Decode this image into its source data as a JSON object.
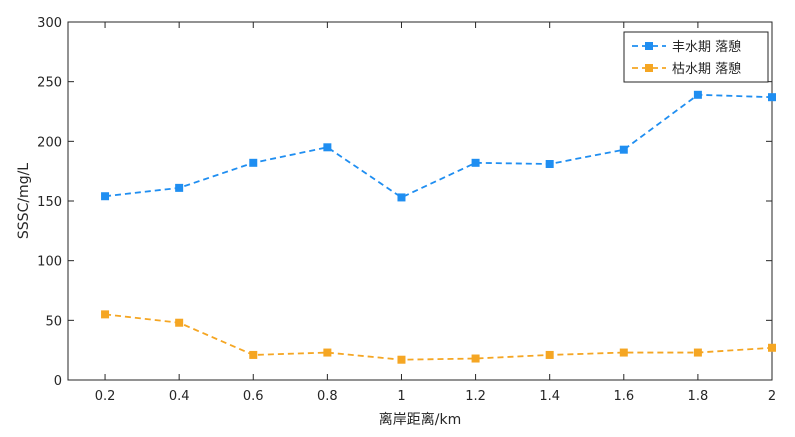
{
  "chart_data": {
    "type": "line",
    "xlabel": "离岸距离/km",
    "ylabel": "SSSC/mg/L",
    "x": [
      0.2,
      0.4,
      0.6,
      0.8,
      1,
      1.2,
      1.4,
      1.6,
      1.8,
      2
    ],
    "xticks": [
      "0.2",
      "0.4",
      "0.6",
      "0.8",
      "1",
      "1.2",
      "1.4",
      "1.6",
      "1.8",
      "2"
    ],
    "yticks": [
      "0",
      "50",
      "100",
      "150",
      "200",
      "250",
      "300"
    ],
    "xlim": [
      0.1,
      2
    ],
    "ylim": [
      0,
      300
    ],
    "grid": false,
    "legend_position": "top-right",
    "series": [
      {
        "name": "丰水期 落憩",
        "color": "#1f8ef1",
        "line_style": "dashed",
        "marker": "square",
        "values": [
          154,
          161,
          182,
          195,
          153,
          182,
          181,
          193,
          239,
          237
        ]
      },
      {
        "name": "枯水期 落憩",
        "color": "#f5a623",
        "line_style": "dashed",
        "marker": "square",
        "values": [
          55,
          48,
          21,
          23,
          17,
          18,
          21,
          23,
          23,
          27
        ]
      }
    ]
  }
}
